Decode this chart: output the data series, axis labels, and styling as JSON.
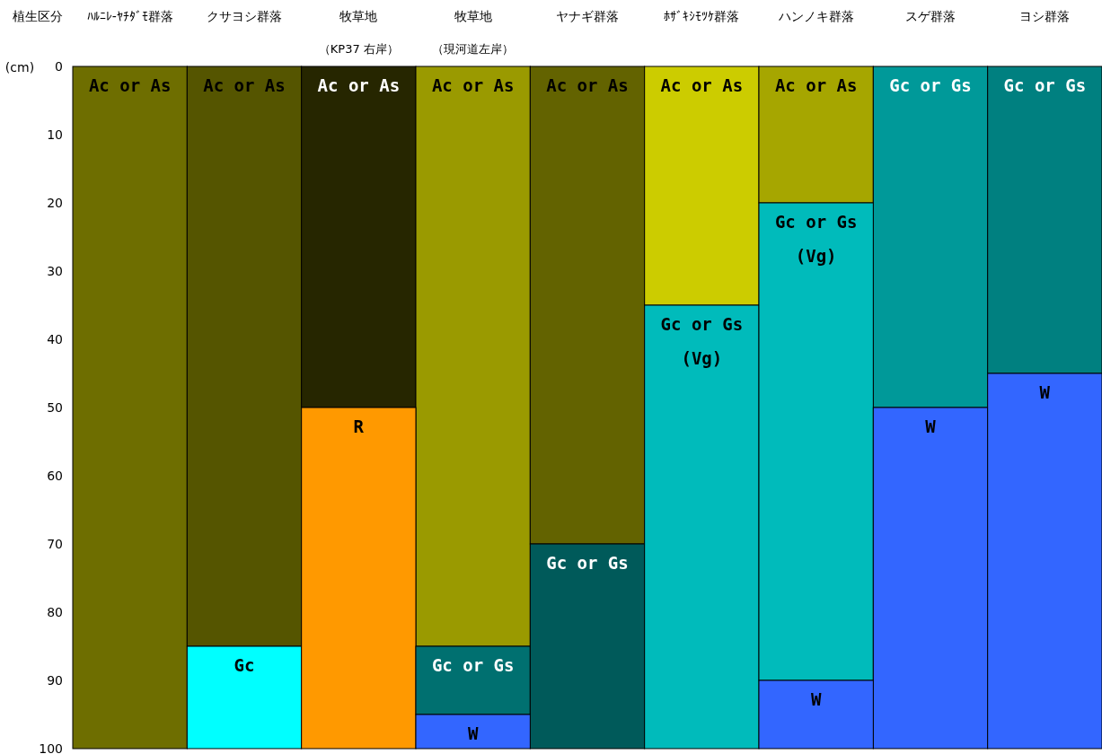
{
  "chart_data": {
    "type": "bar",
    "stacked": true,
    "xlabel": "植生区分",
    "ylabel": "(cm)",
    "categories": [
      "ﾊﾙﾆﾚ-ﾔﾁﾀﾞﾓ群落",
      "クサヨシ群落",
      "牧草地（KP37 右岸）",
      "牧草地（現河道左岸）",
      "ヤナギ群落",
      "ﾎｻﾞｷｼﾓﾂｹ群落",
      "ハンノキ群落",
      "スゲ群落",
      "ヨシ群落"
    ],
    "ylim": [
      100,
      0
    ],
    "yticks": [
      0,
      10,
      20,
      30,
      40,
      50,
      60,
      70,
      80,
      90,
      100
    ],
    "grid": false,
    "series": [
      {
        "colors": [
          "#6e6e00",
          "#555500",
          "#262600",
          "#9a9a00",
          "#636300",
          "#cccc00",
          "#a6a600",
          "#009999",
          "#008080"
        ],
        "values": [
          100,
          85,
          50,
          85,
          70,
          35,
          20,
          50,
          45
        ],
        "value_labels": [
          "Ac or As",
          "Ac or As",
          "Ac or As",
          "Ac or As",
          "Ac or As",
          "Ac or As",
          "Ac or As",
          "Gc or Gs",
          "Gc or Gs"
        ]
      },
      {
        "colors": [
          null,
          "#00ffff",
          "#ff9900",
          "#007070",
          "#005a5a",
          "#00bbbb",
          "#00bbbb",
          "#3366ff",
          "#3366ff"
        ],
        "values": [
          null,
          15,
          50,
          10,
          30,
          65,
          70,
          50,
          55
        ],
        "value_labels": [
          null,
          "Gc",
          "R",
          "Gc or Gs",
          "Gc or Gs",
          "Gc or Gs\n(Vg)",
          "Gc or Gs\n(Vg)",
          "W",
          "W"
        ]
      },
      {
        "colors": [
          null,
          null,
          null,
          "#3366ff",
          null,
          null,
          "#3366ff",
          null,
          null
        ],
        "values": [
          null,
          null,
          null,
          5,
          null,
          null,
          10,
          null,
          null
        ],
        "value_labels": [
          null,
          null,
          null,
          "W",
          null,
          null,
          "W",
          null,
          null
        ]
      }
    ]
  }
}
